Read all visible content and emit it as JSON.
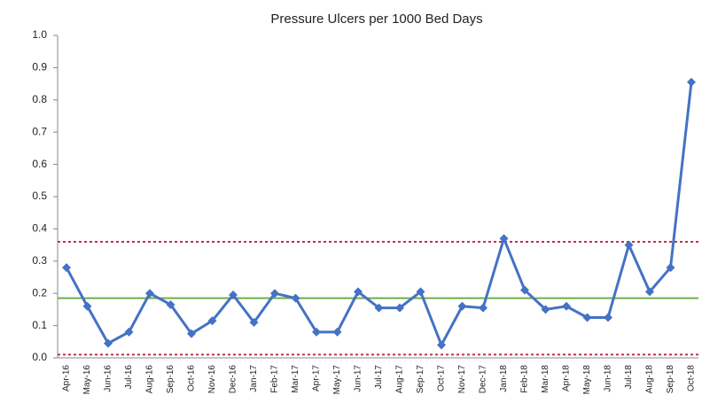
{
  "chart_data": {
    "type": "line",
    "title": "Pressure Ulcers per 1000 Bed Days",
    "categories": [
      "Apr-16",
      "May-16",
      "Jun-16",
      "Jul-16",
      "Aug-16",
      "Sep-16",
      "Oct-16",
      "Nov-16",
      "Dec-16",
      "Jan-17",
      "Feb-17",
      "Mar-17",
      "Apr-17",
      "May-17",
      "Jun-17",
      "Jul-17",
      "Aug-17",
      "Sep-17",
      "Oct-17",
      "Nov-17",
      "Dec-17",
      "Jan-18",
      "Feb-18",
      "Mar-18",
      "Apr-18",
      "May-18",
      "Jun-18",
      "Jul-18",
      "Aug-18",
      "Sep-18",
      "Oct-18"
    ],
    "values": [
      0.28,
      0.16,
      0.045,
      0.08,
      0.2,
      0.165,
      0.075,
      0.115,
      0.195,
      0.11,
      0.2,
      0.185,
      0.08,
      0.08,
      0.205,
      0.155,
      0.155,
      0.205,
      0.04,
      0.16,
      0.155,
      0.37,
      0.21,
      0.15,
      0.16,
      0.125,
      0.125,
      0.35,
      0.205,
      0.28,
      0.855
    ],
    "color": "#4472c4",
    "reference_lines": [
      {
        "value": 0.36,
        "color": "#c0304a",
        "style": "dashed"
      },
      {
        "value": 0.185,
        "color": "#70ad47",
        "style": "solid"
      },
      {
        "value": 0.01,
        "color": "#c0304a",
        "style": "dashed"
      }
    ],
    "ylim": [
      0,
      1
    ],
    "yticks": [
      {
        "value": 0,
        "label": "0.0"
      },
      0.1,
      0.2,
      0.3,
      0.4,
      0.5,
      0.6,
      0.7,
      0.8,
      0.9,
      {
        "value": 1,
        "label": "1.0"
      }
    ],
    "grid": false
  }
}
